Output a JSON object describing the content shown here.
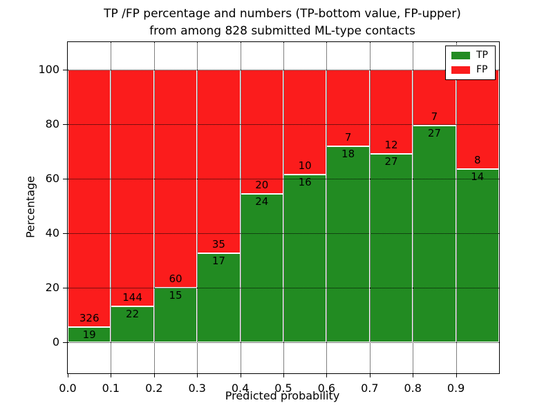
{
  "title": {
    "line1": "TP /FP percentage and numbers (TP-bottom value, FP-upper)",
    "line2": "from among 828 submitted ML-type contacts"
  },
  "axes": {
    "xlabel": "Predicted probability",
    "ylabel": "Percentage",
    "xtick_labels": [
      "0.0",
      "0.1",
      "0.2",
      "0.3",
      "0.4",
      "0.5",
      "0.6",
      "0.7",
      "0.8",
      "0.9"
    ],
    "ytick_values": [
      0,
      20,
      40,
      60,
      80,
      100
    ],
    "grid_style": "dotted"
  },
  "legend": {
    "position": "upper right",
    "items": [
      {
        "label": "TP",
        "color": "#228b22"
      },
      {
        "label": "FP",
        "color": "#fb1c1c"
      }
    ]
  },
  "chart_data": {
    "type": "bar",
    "stacked": true,
    "normalized": "each bar totals 100 percent",
    "title": "TP /FP percentage and numbers (TP-bottom value, FP-upper) from among 828 submitted ML-type contacts",
    "xlabel": "Predicted probability",
    "ylabel": "Percentage",
    "total_contacts": 828,
    "bin_starts": [
      0.0,
      0.1,
      0.2,
      0.3,
      0.4,
      0.5,
      0.6,
      0.7,
      0.8,
      0.9
    ],
    "bin_width": 0.1,
    "categories": [
      "0.0",
      "0.1",
      "0.2",
      "0.3",
      "0.4",
      "0.5",
      "0.6",
      "0.7",
      "0.8",
      "0.9"
    ],
    "series": [
      {
        "name": "TP",
        "color": "#228b22",
        "counts": [
          19,
          22,
          15,
          17,
          24,
          16,
          18,
          27,
          27,
          14
        ]
      },
      {
        "name": "FP",
        "color": "#fb1c1c",
        "counts": [
          326,
          144,
          60,
          35,
          20,
          10,
          7,
          12,
          7,
          8
        ]
      }
    ],
    "tp_percent": [
      5.51,
      13.25,
      20.0,
      32.69,
      54.55,
      61.54,
      72.0,
      69.23,
      79.41,
      63.64
    ],
    "ylim": [
      0,
      100
    ],
    "grid": "dotted",
    "legend_position": "upper right"
  }
}
